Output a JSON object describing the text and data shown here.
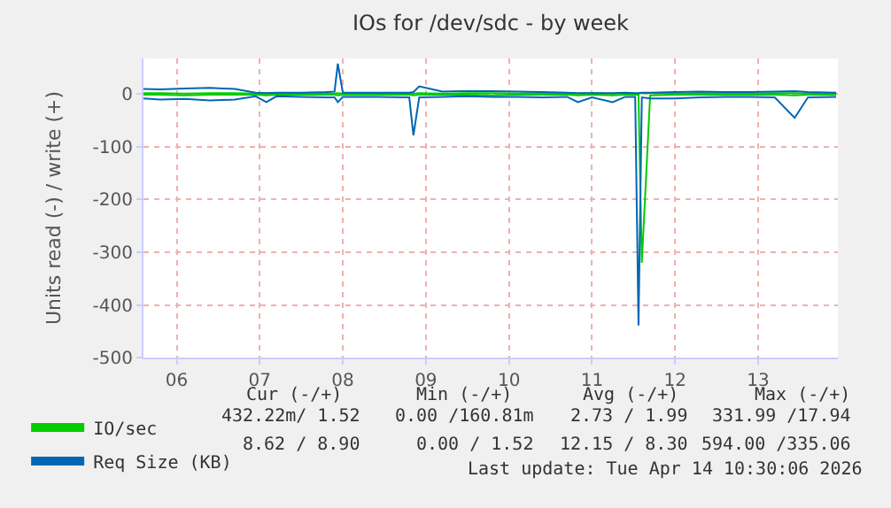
{
  "chart_data": {
    "type": "line",
    "title": "IOs for /dev/sdc - by week",
    "ylabel": "Units read (-) / write (+)",
    "x": [
      6.1,
      6.3,
      6.6,
      6.9,
      7.2,
      7.45,
      7.58,
      7.7,
      8.0,
      8.3,
      8.4,
      8.44,
      8.5,
      8.9,
      9.3,
      9.35,
      9.42,
      9.7,
      10.0,
      10.3,
      10.6,
      10.9,
      11.2,
      11.33,
      11.5,
      11.75,
      11.9,
      12.02,
      12.06,
      12.1,
      12.2,
      12.5,
      12.8,
      13.1,
      13.4,
      13.7,
      13.94,
      14.1,
      14.44
    ],
    "series": [
      {
        "name": "IO/sec",
        "color": "#00cc00",
        "values": [
          2,
          2,
          1,
          2,
          2,
          1,
          1,
          1,
          2,
          2,
          1,
          2,
          1,
          1,
          2,
          1,
          2,
          1,
          2,
          2,
          1,
          2,
          1,
          1,
          2,
          1,
          2,
          1,
          1,
          2,
          2,
          1,
          2,
          2,
          1,
          2,
          2,
          1,
          2
        ]
      },
      {
        "color": "#00cc00",
        "values": [
          -1,
          -1,
          -2,
          -1,
          -1,
          -1,
          -2,
          -1,
          -1,
          -1,
          -1,
          -2,
          -1,
          -1,
          -1,
          -2,
          -1,
          -1,
          -1,
          -2,
          -1,
          -1,
          -1,
          -2,
          -1,
          -2,
          -1,
          -1,
          -1,
          -320,
          -2,
          -1,
          -1,
          -1,
          -1,
          -1,
          -2,
          -1,
          -1
        ]
      },
      {
        "name": "Req Size (KB)",
        "color": "#0066b3",
        "values": [
          10,
          9,
          11,
          12,
          10,
          3,
          2,
          3,
          3,
          4,
          5,
          58,
          3,
          3,
          3,
          4,
          15,
          5,
          6,
          6,
          5,
          4,
          3,
          2,
          2,
          2,
          3,
          2,
          2,
          3,
          3,
          4,
          5,
          4,
          4,
          5,
          6,
          4,
          3
        ]
      },
      {
        "color": "#0066b3",
        "values": [
          -8,
          -10,
          -9,
          -12,
          -10,
          -4,
          -15,
          -4,
          -5,
          -6,
          -6,
          -15,
          -5,
          -5,
          -6,
          -78,
          -6,
          -5,
          -4,
          -5,
          -5,
          -6,
          -5,
          -15,
          -6,
          -15,
          -5,
          -5,
          -439,
          -6,
          -8,
          -8,
          -6,
          -5,
          -5,
          -6,
          -45,
          -6,
          -5
        ]
      }
    ],
    "xlim": [
      6.1,
      14.46
    ],
    "xticks": [
      {
        "value": 6.5,
        "label": "06"
      },
      {
        "value": 7.5,
        "label": "07"
      },
      {
        "value": 8.5,
        "label": "08"
      },
      {
        "value": 9.5,
        "label": "09"
      },
      {
        "value": 10.5,
        "label": "10"
      },
      {
        "value": 11.5,
        "label": "11"
      },
      {
        "value": 12.5,
        "label": "12"
      },
      {
        "value": 13.5,
        "label": "13"
      }
    ],
    "ylim": [
      -500,
      68
    ],
    "yticks": [
      -500,
      -400,
      -300,
      -200,
      -100,
      0
    ],
    "grid": true,
    "legend": "bottom left",
    "marker": "none",
    "line_style": "solid",
    "annotations": [
      "Cur (-/+)",
      "Min (-/+)",
      "Avg (-/+)",
      "Max (-/+)",
      "432.22m/ 1.52",
      "0.00 /160.81m",
      "2.73 / 1.99",
      "331.99 /17.94",
      "8.62 / 8.90",
      "0.00 / 1.52",
      "12.15 / 8.30",
      "594.00 /335.06",
      "Last update: Tue Apr 14 10:30:06 2026"
    ]
  }
}
